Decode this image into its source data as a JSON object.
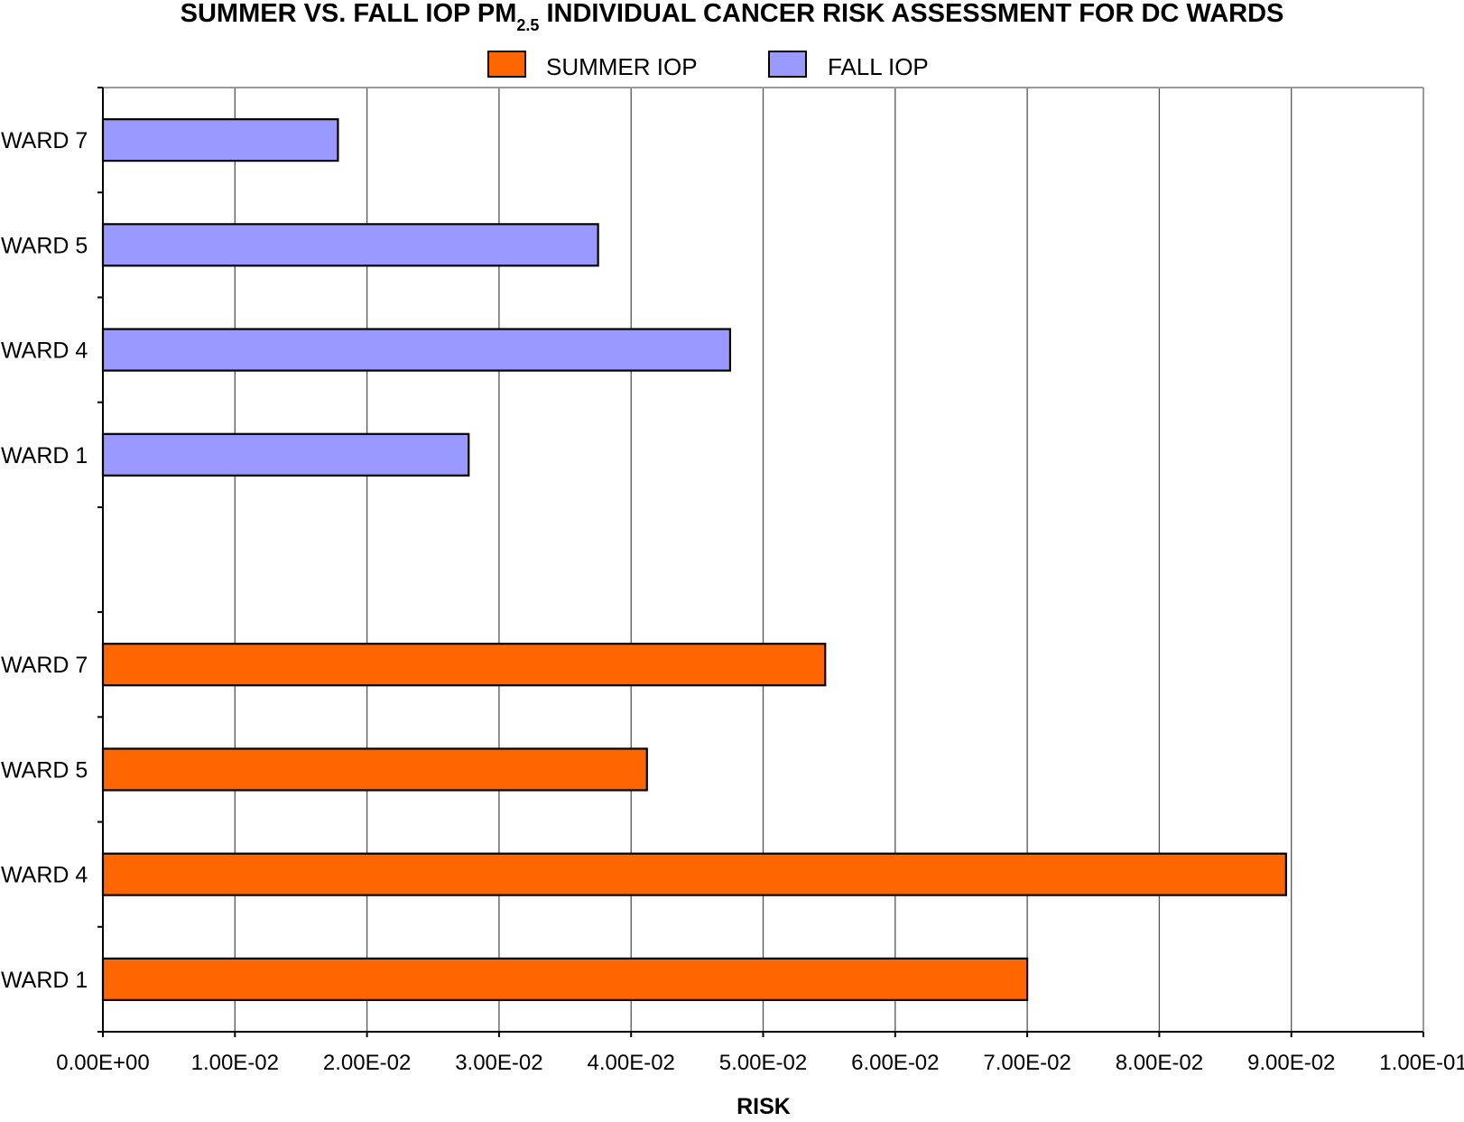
{
  "chart_data": {
    "type": "bar",
    "orientation": "horizontal",
    "title": {
      "prefix": "SUMMER VS. FALL IOP PM",
      "subscript": "2.5",
      "suffix": " INDIVIDUAL CANCER RISK ASSESSMENT FOR DC WARDS"
    },
    "xlabel": "RISK",
    "ylabel": "",
    "xlim": [
      0,
      0.1
    ],
    "x_ticks": [
      "0.00E+00",
      "1.00E-02",
      "2.00E-02",
      "3.00E-02",
      "4.00E-02",
      "5.00E-02",
      "6.00E-02",
      "7.00E-02",
      "8.00E-02",
      "9.00E-02",
      "1.00E-01"
    ],
    "grid": "vertical",
    "legend_position": "top-center",
    "categories_top_to_bottom": [
      "WARD 7",
      "WARD 5",
      "WARD 4",
      "WARD 1",
      "",
      "WARD 7",
      "WARD 5",
      "WARD 4",
      "WARD 1"
    ],
    "series": [
      {
        "name": "SUMMER IOP",
        "color": "#ff6600",
        "categories": [
          "WARD 7",
          "WARD 5",
          "WARD 4",
          "WARD 1"
        ],
        "values": [
          0.0547,
          0.0412,
          0.0896,
          0.07
        ]
      },
      {
        "name": "FALL IOP",
        "color": "#9999ff",
        "categories": [
          "WARD 7",
          "WARD 5",
          "WARD 4",
          "WARD 1"
        ],
        "values": [
          0.0178,
          0.0375,
          0.0475,
          0.0277
        ]
      }
    ]
  }
}
